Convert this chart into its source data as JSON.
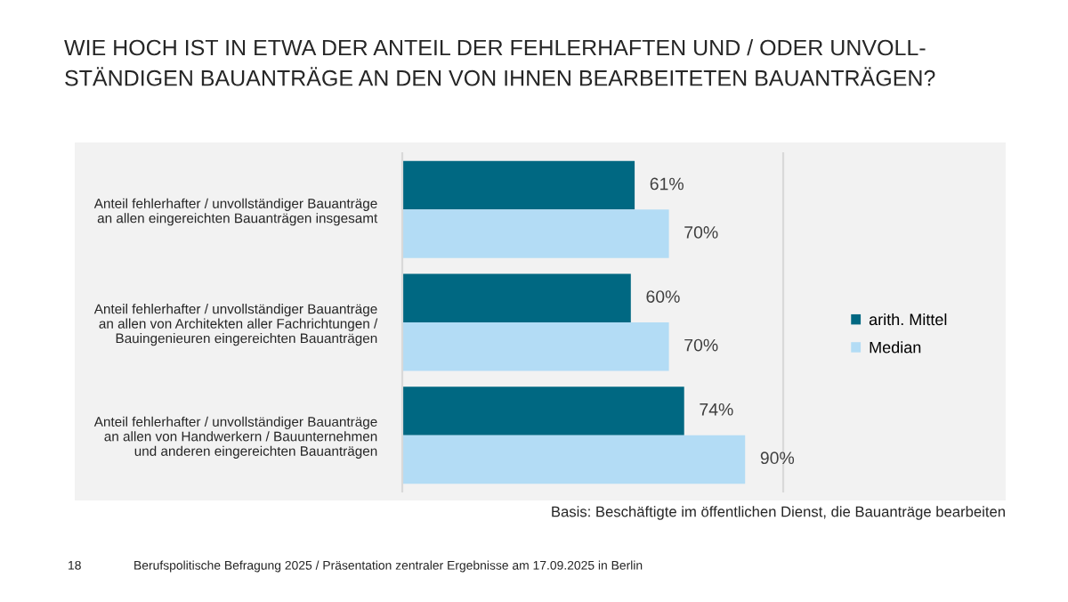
{
  "chart_data": {
    "type": "bar",
    "orientation": "horizontal",
    "title": "WIE HOCH IST IN ETWA DER ANTEIL DER FEHLERHAFTEN UND / ODER UNVOLL-\nSTÄNDIGEN BAUANTRÄGE AN DEN VON IHNEN BEARBEITETEN BAUANTRÄGEN?",
    "categories": [
      "Anteil fehlerhafter / unvollständiger Bauanträge\nan allen eingereichten Bauanträgen insgesamt",
      "Anteil fehlerhafter / unvollständiger Bauanträge\nan allen von Architekten aller Fachrichtungen /\nBauingenieuren eingereichten Bauanträgen",
      "Anteil fehlerhafter / unvollständiger Bauanträge\nan allen von Handwerkern / Bauunternehmen\nund anderen eingereichten Bauanträgen"
    ],
    "series": [
      {
        "name": "arith. Mittel",
        "color": "#006882",
        "values": [
          61,
          60,
          74
        ],
        "value_labels": [
          "61%",
          "60%",
          "74%"
        ]
      },
      {
        "name": "Median",
        "color": "#b3dcf5",
        "values": [
          70,
          70,
          90
        ],
        "value_labels": [
          "70%",
          "70%",
          "90%"
        ]
      }
    ],
    "xlim": [
      0,
      100
    ],
    "tick_labels": "y",
    "grid": false,
    "legend": "right",
    "annotations": [
      "Basis: Beschäftigte im öffentlichen Dienst, die Bauanträge bearbeiten",
      "18",
      "Berufspolitische Befragung 2025 / Präsentation zentraler Ergebnisse am 17.09.2025 in Berlin"
    ]
  }
}
